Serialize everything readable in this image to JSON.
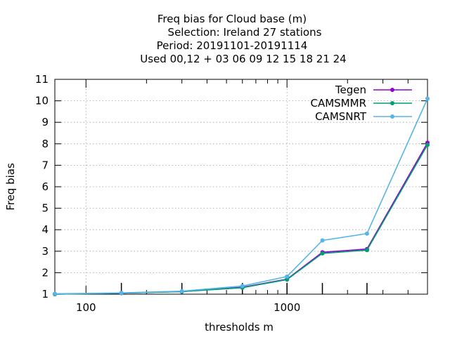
{
  "chart_data": {
    "type": "line",
    "title_lines": [
      "Freq bias  for Cloud base (m)",
      "Selection: Ireland     27 stations",
      "Period: 20191101-20191114",
      "Used  00,12  + 03 06 09 12 15 18 21 24"
    ],
    "xlabel": "thresholds m",
    "ylabel": "Freq bias",
    "x_scale": "log",
    "xlim": [
      70,
      5000
    ],
    "ylim": [
      1,
      11
    ],
    "y_ticks": [
      "1",
      "2",
      "3",
      "4",
      "5",
      "6",
      "7",
      "8",
      "9",
      "10",
      "11"
    ],
    "x_tick_labels": [
      "100",
      "1000"
    ],
    "x_minor_ticks": [
      200,
      300,
      400,
      500,
      600,
      700,
      800,
      900,
      2000,
      3000,
      4000,
      5000
    ],
    "grid": true,
    "legend_position": "top-right",
    "x": [
      70,
      150,
      300,
      600,
      1000,
      1500,
      2500,
      5000
    ],
    "series": [
      {
        "name": "Tegen",
        "color": "#9400d3",
        "values": [
          1.0,
          1.05,
          1.12,
          1.32,
          1.7,
          2.95,
          3.1,
          8.05
        ]
      },
      {
        "name": "CAMSMMR",
        "color": "#009e73",
        "values": [
          1.0,
          1.05,
          1.12,
          1.3,
          1.68,
          2.9,
          3.05,
          7.95
        ]
      },
      {
        "name": "CAMSNRT",
        "color": "#56b4e9",
        "values": [
          1.02,
          1.06,
          1.14,
          1.38,
          1.82,
          3.5,
          3.82,
          10.1
        ]
      }
    ]
  }
}
